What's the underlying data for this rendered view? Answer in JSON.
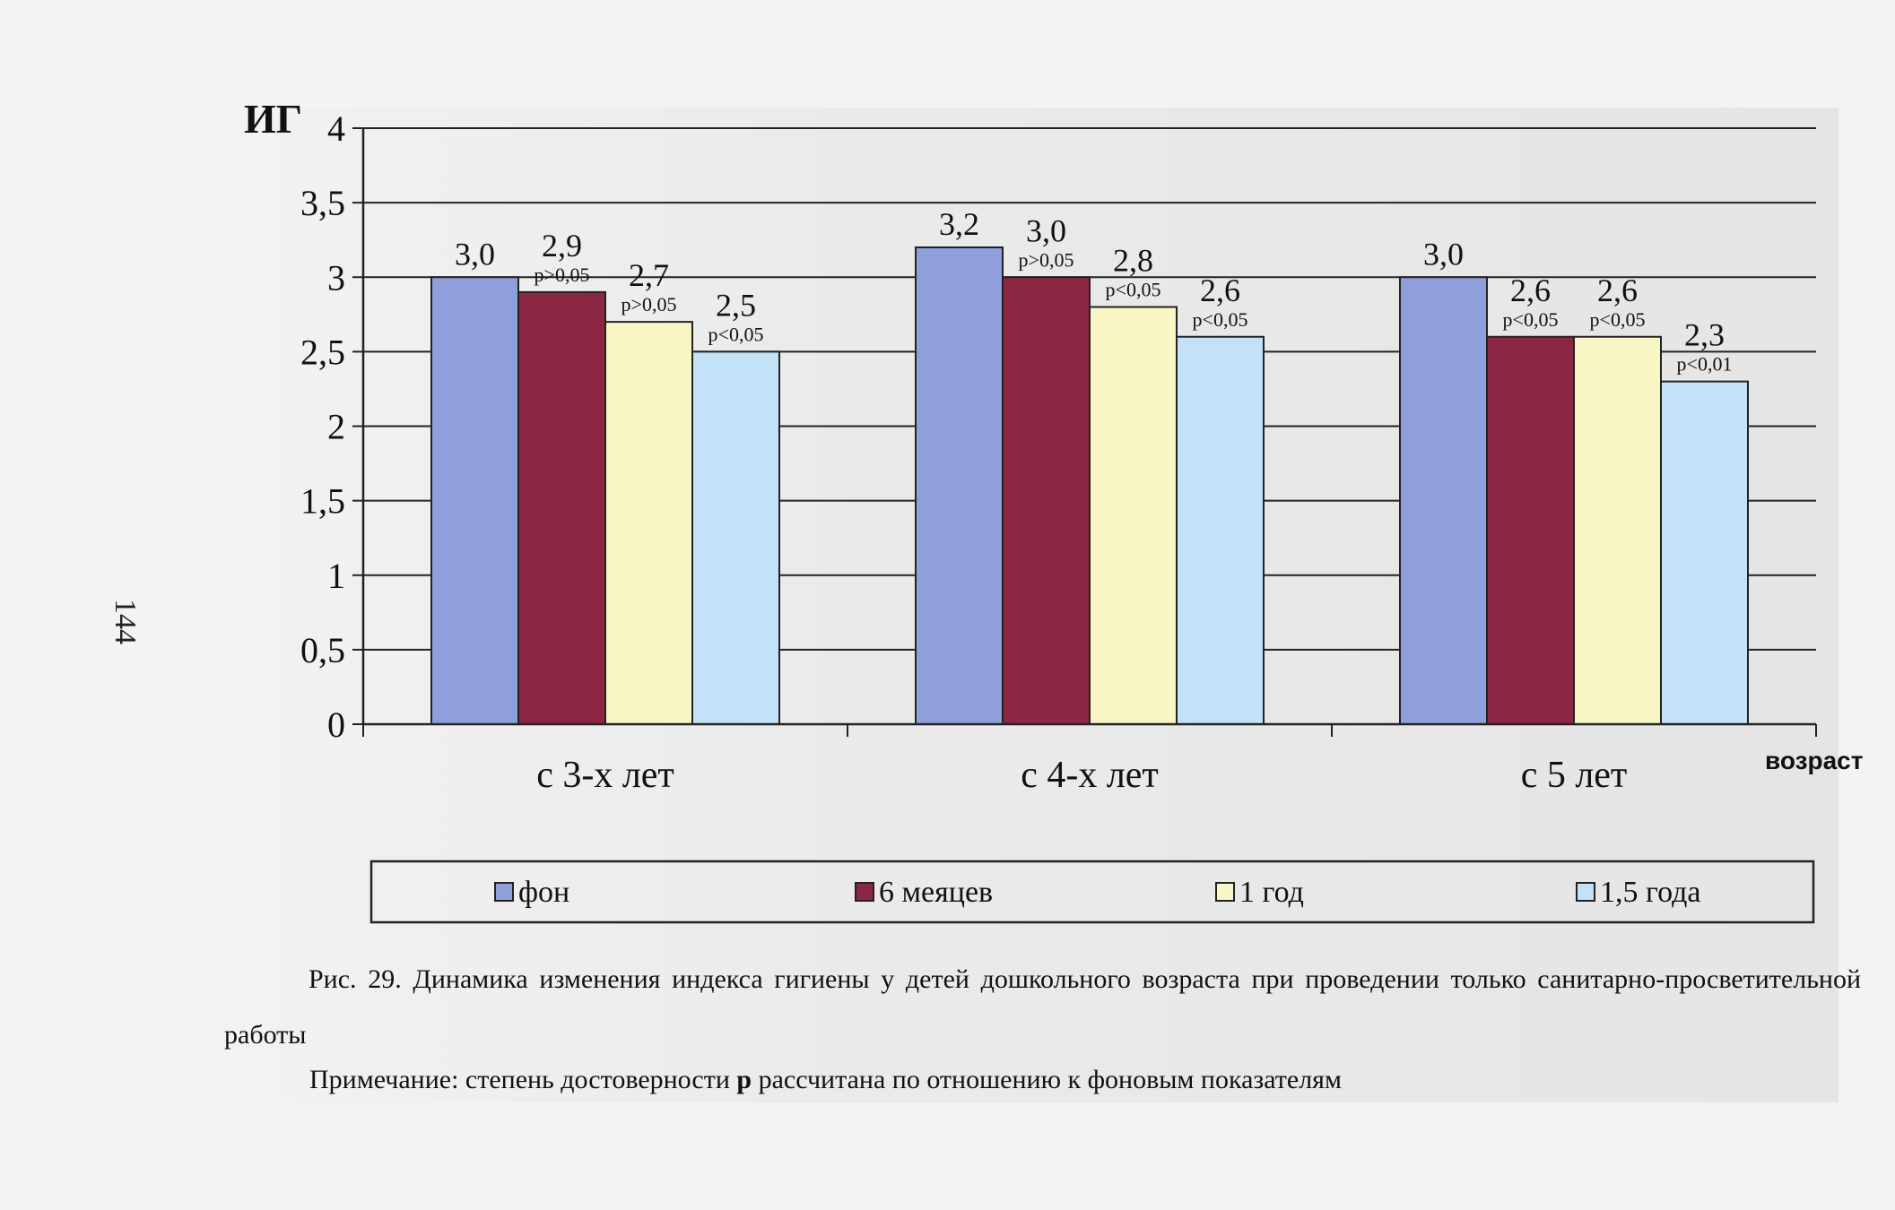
{
  "page": {
    "number": "144"
  },
  "caption": {
    "text": "Рис. 29. Динамика изменения индекса гигиены у детей дошкольного возраста при проведении только санитарно-просветительной работы"
  },
  "note": {
    "prefix": "Примечание: степень достоверности ",
    "bold": "р",
    "suffix": " рассчитана по отношению к фоновым показателям"
  },
  "chart_data": {
    "type": "bar",
    "title": "",
    "ylabel": "ИГ",
    "xlabel": "возраст",
    "ylim": [
      0,
      4
    ],
    "yticks": [
      "0",
      "0,5",
      "1",
      "1,5",
      "2",
      "2,5",
      "3",
      "3,5",
      "4"
    ],
    "grid": true,
    "legend_position": "bottom",
    "categories": [
      "с 3-х лет",
      "с 4-х лет",
      "с 5 лет"
    ],
    "series": [
      {
        "name": "фон",
        "color": "#8f9fdc",
        "values": [
          3.0,
          3.2,
          3.0
        ],
        "labels": [
          "3,0",
          "3,2",
          "3,0"
        ],
        "pvalues": [
          "",
          "",
          ""
        ]
      },
      {
        "name": "6 меяцев",
        "color": "#8b2743",
        "values": [
          2.9,
          3.0,
          2.6
        ],
        "labels": [
          "2,9",
          "3,0",
          "2,6"
        ],
        "pvalues": [
          "p>0,05",
          "p>0,05",
          "p<0,05"
        ]
      },
      {
        "name": "1 год",
        "color": "#f8f6c4",
        "values": [
          2.7,
          2.8,
          2.6
        ],
        "labels": [
          "2,7",
          "2,8",
          "2,6"
        ],
        "pvalues": [
          "p>0,05",
          "p<0,05",
          "p<0,05"
        ]
      },
      {
        "name": "1,5 года",
        "color": "#c3e2f7",
        "values": [
          2.5,
          2.6,
          2.3
        ],
        "labels": [
          "2,5",
          "2,6",
          "2,3"
        ],
        "pvalues": [
          "p<0,05",
          "p<0,05",
          "p<0,01"
        ]
      }
    ]
  }
}
